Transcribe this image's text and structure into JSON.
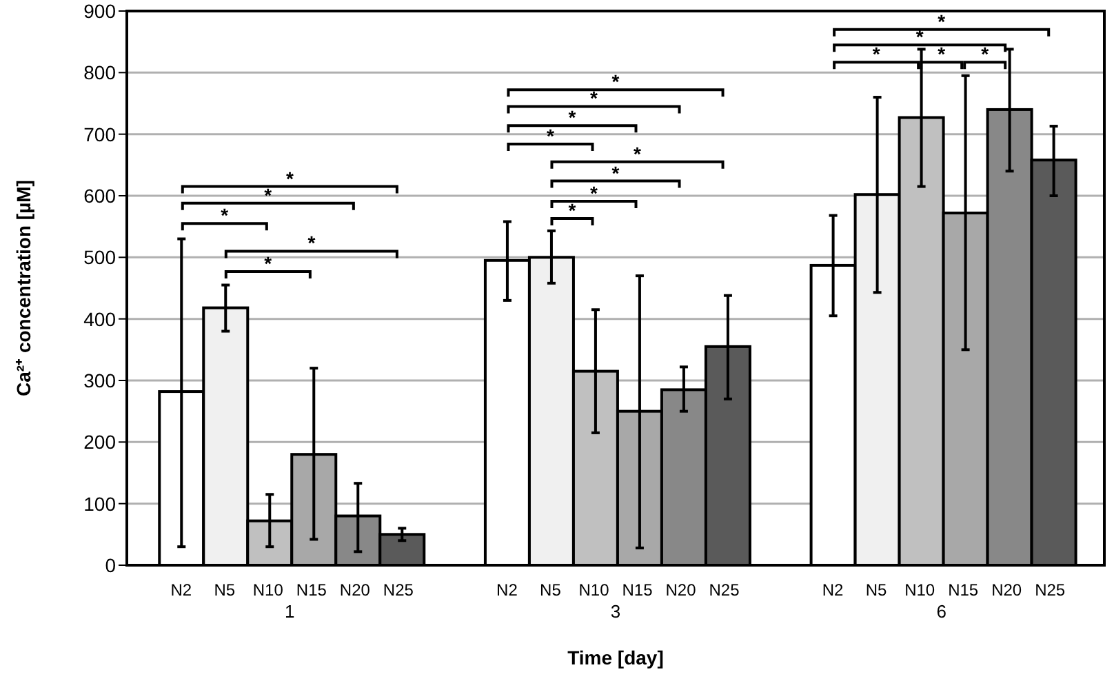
{
  "chart_data": {
    "type": "bar",
    "xlabel": "Time [day]",
    "ylabel": "Ca²⁺ concentration [µM]",
    "categories": [
      "1",
      "3",
      "6"
    ],
    "series": [
      {
        "name": "N2",
        "color": "#ffffff",
        "values": [
          282,
          495,
          487
        ],
        "errors": [
          [
            30,
            530
          ],
          [
            430,
            558
          ],
          [
            405,
            568
          ]
        ]
      },
      {
        "name": "N5",
        "color": "#f0f0f0",
        "values": [
          418,
          500,
          602
        ],
        "errors": [
          [
            380,
            455
          ],
          [
            458,
            543
          ],
          [
            443,
            760
          ]
        ]
      },
      {
        "name": "N10",
        "color": "#c0c0c0",
        "values": [
          72,
          315,
          727
        ],
        "errors": [
          [
            30,
            115
          ],
          [
            215,
            415
          ],
          [
            615,
            838
          ]
        ]
      },
      {
        "name": "N15",
        "color": "#a8a8a8",
        "values": [
          180,
          250,
          572
        ],
        "errors": [
          [
            42,
            320
          ],
          [
            28,
            470
          ],
          [
            350,
            795
          ]
        ]
      },
      {
        "name": "N20",
        "color": "#888888",
        "values": [
          80,
          285,
          740
        ],
        "errors": [
          [
            22,
            133
          ],
          [
            250,
            322
          ],
          [
            640,
            838
          ]
        ]
      },
      {
        "name": "N25",
        "color": "#5a5a5a",
        "values": [
          50,
          355,
          658
        ],
        "errors": [
          [
            40,
            60
          ],
          [
            270,
            438
          ],
          [
            600,
            713
          ]
        ]
      }
    ],
    "ylim": [
      0,
      900
    ],
    "yticks": [
      0,
      100,
      200,
      300,
      400,
      500,
      600,
      700,
      800,
      900
    ],
    "grid": "y",
    "legend": false,
    "annotations": [
      "*",
      "*",
      "*",
      "*",
      "*",
      "*",
      "*",
      "*",
      "*",
      "*",
      "*",
      "*",
      "*",
      "*",
      "*",
      "*",
      "*",
      "*"
    ]
  }
}
